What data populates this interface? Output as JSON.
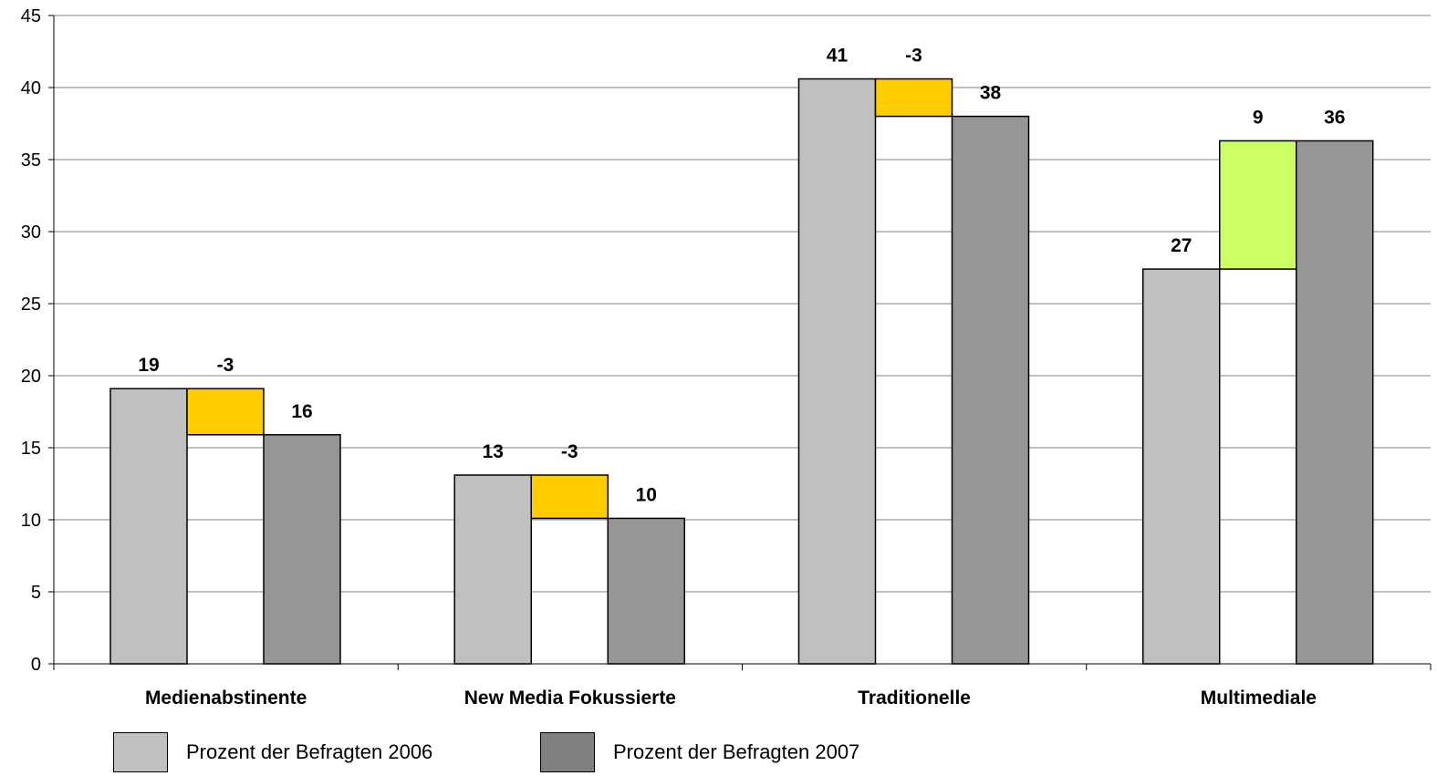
{
  "chart_data": {
    "type": "bar",
    "categories": [
      "Medienabstinente",
      "New Media Fokussierte",
      "Traditionelle",
      "Multimediale"
    ],
    "series": [
      {
        "name": "Prozent der Befragten 2006",
        "values": [
          19.1,
          13.1,
          40.6,
          27.4
        ],
        "labels": [
          "19",
          "13",
          "41",
          "27"
        ]
      },
      {
        "name": "Prozent der Befragten 2007",
        "values": [
          15.9,
          10.1,
          38.0,
          36.3
        ],
        "labels": [
          "16",
          "10",
          "38",
          "36"
        ]
      }
    ],
    "changes": {
      "labels": [
        "-3",
        "-3",
        "-3",
        "9"
      ]
    },
    "yticks": [
      "0",
      "5",
      "10",
      "15",
      "20",
      "25",
      "30",
      "35",
      "40",
      "45"
    ],
    "ylim": [
      0,
      45
    ],
    "grid": true,
    "legend_position": "bottom-left",
    "colors": {
      "series_2006": "#c0c0c0",
      "series_2007": "#969696",
      "decrease": "#ffcc00",
      "increase": "#ccff66",
      "legend_2007": "#808080",
      "gridline": "#808080"
    }
  }
}
